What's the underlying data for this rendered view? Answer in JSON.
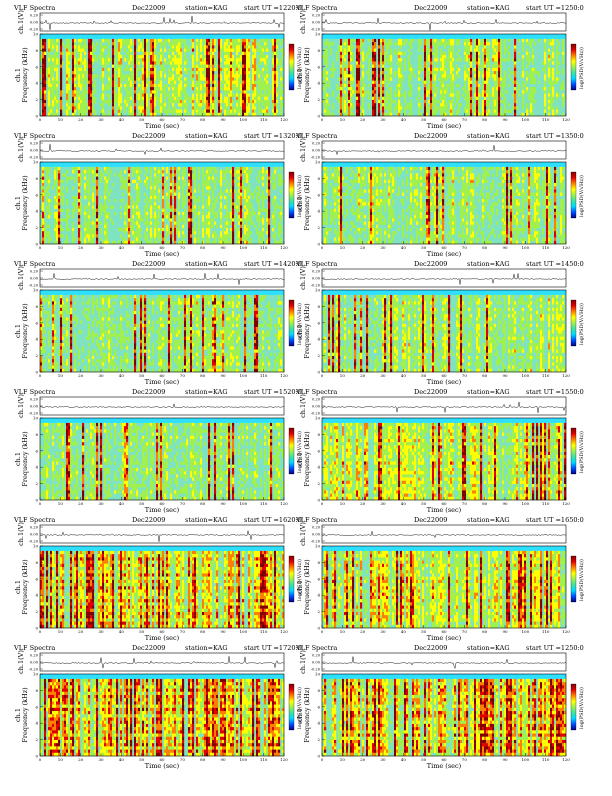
{
  "page": {
    "title_prefix": "VLF Spectra",
    "date": "Dec22009",
    "station": "station=KAG"
  },
  "axes_text": {
    "ylabel_trace": "ch.1(V)",
    "ylabel_spec_line1": "ch.1",
    "ylabel_spec_line2": "Frequency (kHz)",
    "xlabel": "Time (sec)",
    "colorbar_label": "log(PSD(V/√Hz))",
    "trace_ticks": [
      "0.20",
      "0.00",
      "-0.20"
    ],
    "freq_ticks": [
      "10",
      "8",
      "6",
      "4",
      "2",
      "0"
    ],
    "time_ticks": [
      "0",
      "10",
      "20",
      "30",
      "40",
      "50",
      "60",
      "70",
      "80",
      "90",
      "100",
      "110",
      "120"
    ]
  },
  "colors": {
    "colormap": [
      "#000080",
      "#0050ff",
      "#00d8ff",
      "#40e0a0",
      "#a0f050",
      "#ffff00",
      "#ff8000",
      "#e00000",
      "#800000"
    ]
  },
  "chart_data": [
    {
      "type": "heatmap",
      "panel": "spectra",
      "start_text": "start  UT  =1220:0",
      "xlim": [
        0,
        120
      ],
      "ylim": [
        0,
        10
      ],
      "trace_ylim": [
        -0.2,
        0.2
      ],
      "activity": 0.45,
      "seed": 11
    },
    {
      "type": "heatmap",
      "panel": "spectra",
      "start_text": "start  UT  =1250:0",
      "xlim": [
        0,
        120
      ],
      "ylim": [
        0,
        10
      ],
      "trace_ylim": [
        -0.2,
        0.2
      ],
      "activity": 0.35,
      "seed": 23
    },
    {
      "type": "heatmap",
      "panel": "spectra",
      "start_text": "start  UT  =1320:0",
      "xlim": [
        0,
        120
      ],
      "ylim": [
        0,
        10
      ],
      "trace_ylim": [
        -0.2,
        0.2
      ],
      "activity": 0.3,
      "seed": 37
    },
    {
      "type": "heatmap",
      "panel": "spectra",
      "start_text": "start  UT  =1350:0",
      "xlim": [
        0,
        120
      ],
      "ylim": [
        0,
        10
      ],
      "trace_ylim": [
        -0.2,
        0.2
      ],
      "activity": 0.32,
      "seed": 41
    },
    {
      "type": "heatmap",
      "panel": "spectra",
      "start_text": "start  UT  =1420:0",
      "xlim": [
        0,
        120
      ],
      "ylim": [
        0,
        10
      ],
      "trace_ylim": [
        -0.2,
        0.2
      ],
      "activity": 0.3,
      "seed": 53
    },
    {
      "type": "heatmap",
      "panel": "spectra",
      "start_text": "start  UT  =1450:0",
      "xlim": [
        0,
        120
      ],
      "ylim": [
        0,
        10
      ],
      "trace_ylim": [
        -0.2,
        0.2
      ],
      "activity": 0.38,
      "seed": 67
    },
    {
      "type": "heatmap",
      "panel": "spectra",
      "start_text": "start  UT  =1520:0",
      "xlim": [
        0,
        120
      ],
      "ylim": [
        0,
        10
      ],
      "trace_ylim": [
        -0.2,
        0.2
      ],
      "activity": 0.3,
      "seed": 71
    },
    {
      "type": "heatmap",
      "panel": "spectra",
      "start_text": "start  UT  =1550:0",
      "xlim": [
        0,
        120
      ],
      "ylim": [
        0,
        10
      ],
      "trace_ylim": [
        -0.2,
        0.2
      ],
      "activity": 0.55,
      "seed": 83
    },
    {
      "type": "heatmap",
      "panel": "spectra",
      "start_text": "start  UT  =1620:0",
      "xlim": [
        0,
        120
      ],
      "ylim": [
        0,
        10
      ],
      "trace_ylim": [
        -0.2,
        0.2
      ],
      "activity": 0.65,
      "seed": 97
    },
    {
      "type": "heatmap",
      "panel": "spectra",
      "start_text": "start  UT  =1650:0",
      "xlim": [
        0,
        120
      ],
      "ylim": [
        0,
        10
      ],
      "trace_ylim": [
        -0.2,
        0.2
      ],
      "activity": 0.55,
      "seed": 101
    },
    {
      "type": "heatmap",
      "panel": "spectra",
      "start_text": "start  UT  =1720:0",
      "xlim": [
        0,
        120
      ],
      "ylim": [
        0,
        10
      ],
      "trace_ylim": [
        -0.2,
        0.2
      ],
      "activity": 0.8,
      "seed": 113
    },
    {
      "type": "heatmap",
      "panel": "spectra",
      "start_text": "start  UT  =1250:0",
      "xlim": [
        0,
        120
      ],
      "ylim": [
        0,
        10
      ],
      "trace_ylim": [
        -0.2,
        0.2
      ],
      "activity": 0.85,
      "seed": 127
    }
  ]
}
